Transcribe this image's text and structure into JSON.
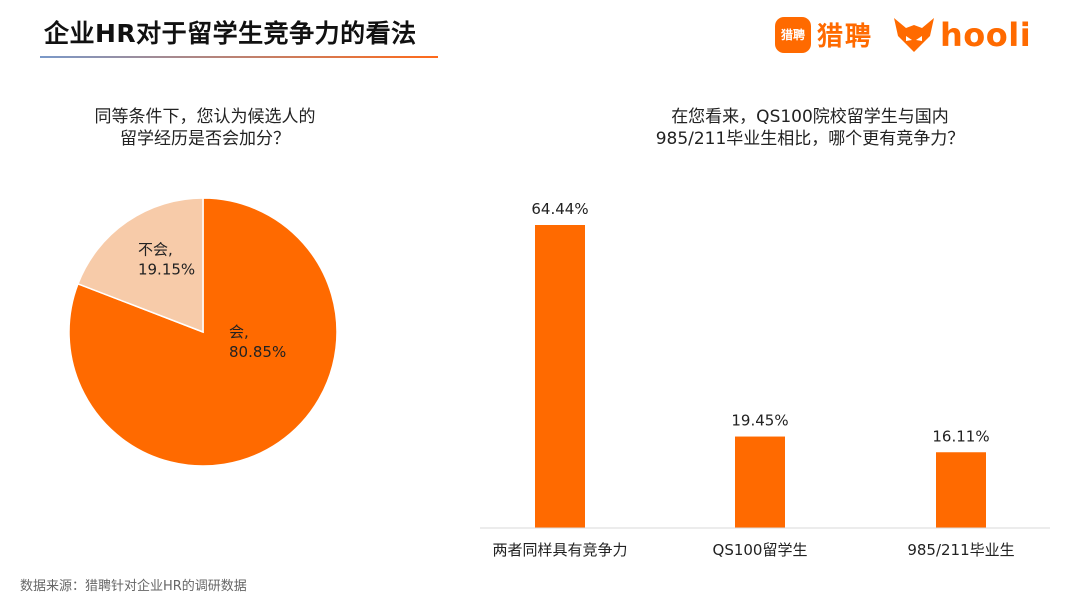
{
  "page": {
    "title": "企业HR对于留学生竞争力的看法",
    "brand_liepin_logo_text": "猎聘",
    "brand_liepin": "猎聘",
    "brand_hooli": "hooli",
    "source": "数据来源：猎聘针对企业HR的调研数据",
    "colors": {
      "accent": "#ff6a00",
      "pie_light": "#f7cba9"
    }
  },
  "chart_data": [
    {
      "type": "pie",
      "title_line1": "同等条件下，您认为候选人的",
      "title_line2": "留学经历是否会加分？",
      "slices": [
        {
          "label": "会,",
          "value": 80.85,
          "value_label": "80.85%",
          "color": "#ff6a00"
        },
        {
          "label": "不会,",
          "value": 19.15,
          "value_label": "19.15%",
          "color": "#f7cba9"
        }
      ]
    },
    {
      "type": "bar",
      "title_line1": "在您看来，QS100院校留学生与国内",
      "title_line2": "985/211毕业生相比，哪个更有竞争力？",
      "categories": [
        "两者同样具有竞争力",
        "QS100留学生",
        "985/211毕业生"
      ],
      "values": [
        64.44,
        19.45,
        16.11
      ],
      "value_labels": [
        "64.44%",
        "19.45%",
        "16.11%"
      ],
      "color": "#ff6a00"
    }
  ]
}
